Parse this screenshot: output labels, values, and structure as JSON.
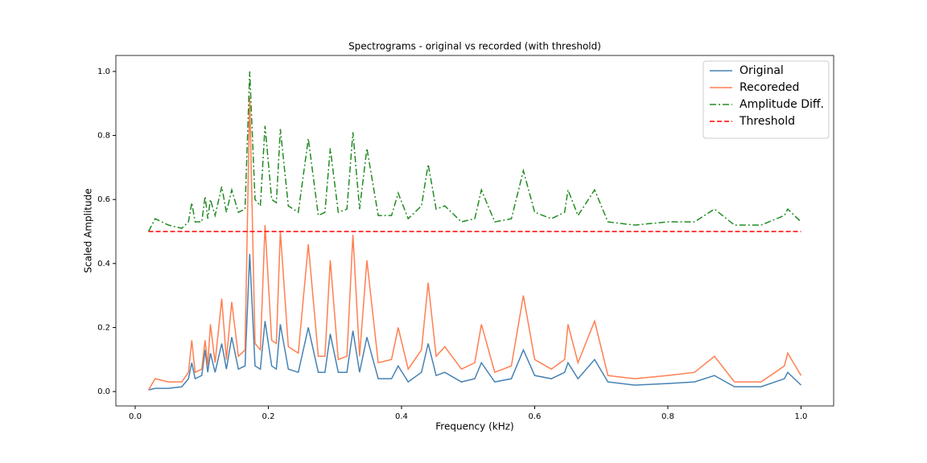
{
  "chart_data": {
    "type": "line",
    "title": "Spectrograms - original vs recorded (with threshold)",
    "x_label": "Frequency (kHz)",
    "y_label": "Scaled Amplitude",
    "x": [
      0.02,
      0.03,
      0.05,
      0.07,
      0.08,
      0.085,
      0.09,
      0.1,
      0.105,
      0.109,
      0.113,
      0.12,
      0.13,
      0.137,
      0.145,
      0.155,
      0.165,
      0.172,
      0.18,
      0.188,
      0.195,
      0.205,
      0.212,
      0.218,
      0.23,
      0.245,
      0.26,
      0.275,
      0.285,
      0.293,
      0.305,
      0.318,
      0.327,
      0.337,
      0.348,
      0.365,
      0.385,
      0.395,
      0.41,
      0.43,
      0.44,
      0.452,
      0.465,
      0.49,
      0.51,
      0.52,
      0.54,
      0.565,
      0.583,
      0.6,
      0.625,
      0.645,
      0.65,
      0.665,
      0.69,
      0.71,
      0.75,
      0.8,
      0.84,
      0.87,
      0.9,
      0.94,
      0.975,
      0.98,
      1.0
    ],
    "series": [
      {
        "name": "Original",
        "color": "#4682b4",
        "dash": "solid",
        "values": [
          0.005,
          0.01,
          0.01,
          0.015,
          0.04,
          0.09,
          0.04,
          0.05,
          0.13,
          0.06,
          0.12,
          0.06,
          0.15,
          0.07,
          0.17,
          0.07,
          0.08,
          0.43,
          0.08,
          0.07,
          0.22,
          0.08,
          0.07,
          0.21,
          0.07,
          0.06,
          0.2,
          0.06,
          0.06,
          0.18,
          0.06,
          0.06,
          0.19,
          0.06,
          0.17,
          0.04,
          0.04,
          0.08,
          0.03,
          0.06,
          0.15,
          0.05,
          0.06,
          0.03,
          0.04,
          0.09,
          0.03,
          0.04,
          0.13,
          0.05,
          0.04,
          0.06,
          0.09,
          0.04,
          0.1,
          0.03,
          0.02,
          0.025,
          0.03,
          0.05,
          0.015,
          0.015,
          0.04,
          0.06,
          0.02
        ]
      },
      {
        "name": "Recoreded",
        "color": "#ff7f50",
        "dash": "solid",
        "values": [
          0.005,
          0.04,
          0.03,
          0.03,
          0.06,
          0.16,
          0.06,
          0.07,
          0.16,
          0.08,
          0.21,
          0.09,
          0.29,
          0.1,
          0.28,
          0.11,
          0.13,
          0.92,
          0.15,
          0.13,
          0.52,
          0.16,
          0.15,
          0.5,
          0.14,
          0.12,
          0.46,
          0.11,
          0.11,
          0.41,
          0.1,
          0.11,
          0.49,
          0.11,
          0.41,
          0.09,
          0.1,
          0.2,
          0.07,
          0.13,
          0.34,
          0.11,
          0.14,
          0.07,
          0.09,
          0.21,
          0.06,
          0.08,
          0.3,
          0.1,
          0.07,
          0.1,
          0.21,
          0.09,
          0.22,
          0.05,
          0.04,
          0.05,
          0.06,
          0.11,
          0.03,
          0.03,
          0.08,
          0.12,
          0.05
        ]
      },
      {
        "name": "Amplitude Diff.",
        "color": "#228b22",
        "dash": "dashdot",
        "values": [
          0.5,
          0.54,
          0.52,
          0.51,
          0.53,
          0.59,
          0.53,
          0.53,
          0.61,
          0.54,
          0.6,
          0.55,
          0.64,
          0.56,
          0.63,
          0.56,
          0.57,
          1.0,
          0.6,
          0.58,
          0.83,
          0.6,
          0.59,
          0.82,
          0.58,
          0.56,
          0.79,
          0.55,
          0.56,
          0.76,
          0.56,
          0.57,
          0.81,
          0.57,
          0.76,
          0.55,
          0.55,
          0.62,
          0.54,
          0.58,
          0.71,
          0.57,
          0.58,
          0.53,
          0.54,
          0.63,
          0.53,
          0.54,
          0.69,
          0.56,
          0.54,
          0.56,
          0.63,
          0.55,
          0.63,
          0.53,
          0.52,
          0.53,
          0.53,
          0.57,
          0.52,
          0.52,
          0.55,
          0.57,
          0.53
        ]
      },
      {
        "name": "Threshold",
        "color": "#ff0000",
        "dash": "dashed",
        "x": [
          0.02,
          1.0
        ],
        "values": [
          0.5,
          0.5
        ]
      }
    ],
    "xlim": [
      -0.029,
      1.049
    ],
    "ylim": [
      -0.045,
      1.05
    ],
    "xticks": [
      {
        "value": 0,
        "label": "0.0"
      },
      0.2,
      0.4,
      0.6,
      0.8,
      {
        "value": 1,
        "label": "1.0"
      }
    ],
    "yticks": [
      {
        "value": 0,
        "label": "0.0"
      },
      0.2,
      0.4,
      0.6,
      0.8,
      {
        "value": 1,
        "label": "1.0"
      }
    ],
    "legend": "upper right"
  }
}
